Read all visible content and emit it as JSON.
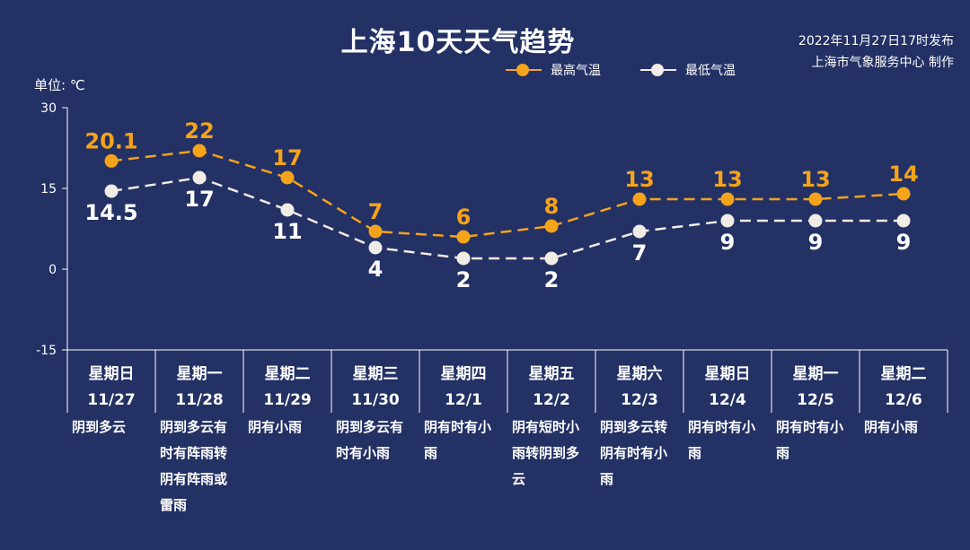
{
  "header": {
    "title": "上海10天天气趋势",
    "issued_line1": "2022年11月27日17时发布",
    "issued_line2": "上海市气象服务中心 制作",
    "unit": "单位: ℃"
  },
  "colors": {
    "background": "#233165",
    "high": "#f5a31a",
    "low": "#f2ece6"
  },
  "chart_data": {
    "type": "line",
    "title": "上海10天天气趋势",
    "ylabel": "单位: ℃",
    "ylim": [
      -15,
      30
    ],
    "yticks": [
      "30",
      "15",
      "0",
      "-15"
    ],
    "legend_placement": "top-right",
    "grid": false,
    "categories": [
      {
        "weekday": "星期日",
        "date": "11/27",
        "weather": "阴到多云"
      },
      {
        "weekday": "星期一",
        "date": "11/28",
        "weather": "阴到多云有时有阵雨转阴有阵雨或雷雨"
      },
      {
        "weekday": "星期二",
        "date": "11/29",
        "weather": "阴有小雨"
      },
      {
        "weekday": "星期三",
        "date": "11/30",
        "weather": "阴到多云有时有小雨"
      },
      {
        "weekday": "星期四",
        "date": "12/1",
        "weather": "阴有时有小雨"
      },
      {
        "weekday": "星期五",
        "date": "12/2",
        "weather": "阴有短时小雨转阴到多云"
      },
      {
        "weekday": "星期六",
        "date": "12/3",
        "weather": "阴到多云转阴有时有小雨"
      },
      {
        "weekday": "星期日",
        "date": "12/4",
        "weather": "阴有时有小雨"
      },
      {
        "weekday": "星期一",
        "date": "12/5",
        "weather": "阴有时有小雨"
      },
      {
        "weekday": "星期二",
        "date": "12/6",
        "weather": "阴有小雨"
      }
    ],
    "series": [
      {
        "name": "最高气温",
        "values": [
          20.1,
          22,
          17,
          7,
          6,
          8,
          13,
          13,
          13,
          14
        ],
        "labels": [
          "20.1",
          "22",
          "17",
          "7",
          "6",
          "8",
          "13",
          "13",
          "13",
          "14"
        ]
      },
      {
        "name": "最低气温",
        "values": [
          14.5,
          17,
          11,
          4,
          2,
          2,
          7,
          9,
          9,
          9
        ],
        "labels": [
          "14.5",
          "17",
          "11",
          "4",
          "2",
          "2",
          "7",
          "9",
          "9",
          "9"
        ]
      }
    ]
  }
}
